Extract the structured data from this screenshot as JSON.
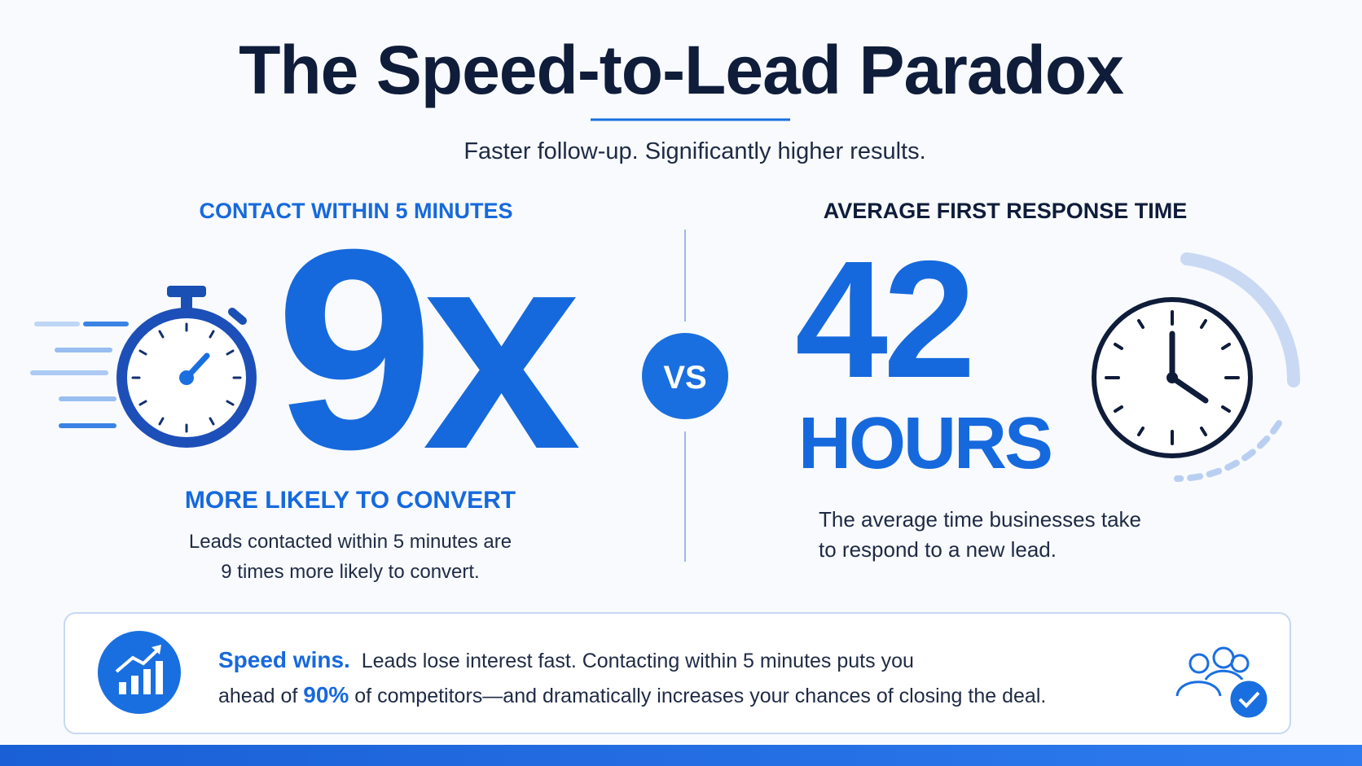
{
  "header": {
    "title": "The Speed-to-Lead Paradox",
    "subtitle": "Faster follow-up. Significantly higher results."
  },
  "left": {
    "label": "CONTACT WITHIN 5 MINUTES",
    "stat": "9x",
    "caption": "MORE LIKELY TO CONVERT",
    "description": [
      "Leads contacted within 5 minutes are",
      "9 times more likely to convert."
    ]
  },
  "divider": {
    "label": "VS"
  },
  "right": {
    "label": "AVERAGE FIRST RESPONSE TIME",
    "stat": "42",
    "unit": "HOURS",
    "description": [
      "The average time businesses take",
      "to respond to a new lead."
    ]
  },
  "callout": {
    "lead": "Speed wins.",
    "line1": "Leads lose interest fast. Contacting within 5 minutes puts you",
    "line2_start": "ahead of",
    "highlight": "90%",
    "line2_end": "of competitors—and dramatically increases your chances of closing the deal."
  }
}
